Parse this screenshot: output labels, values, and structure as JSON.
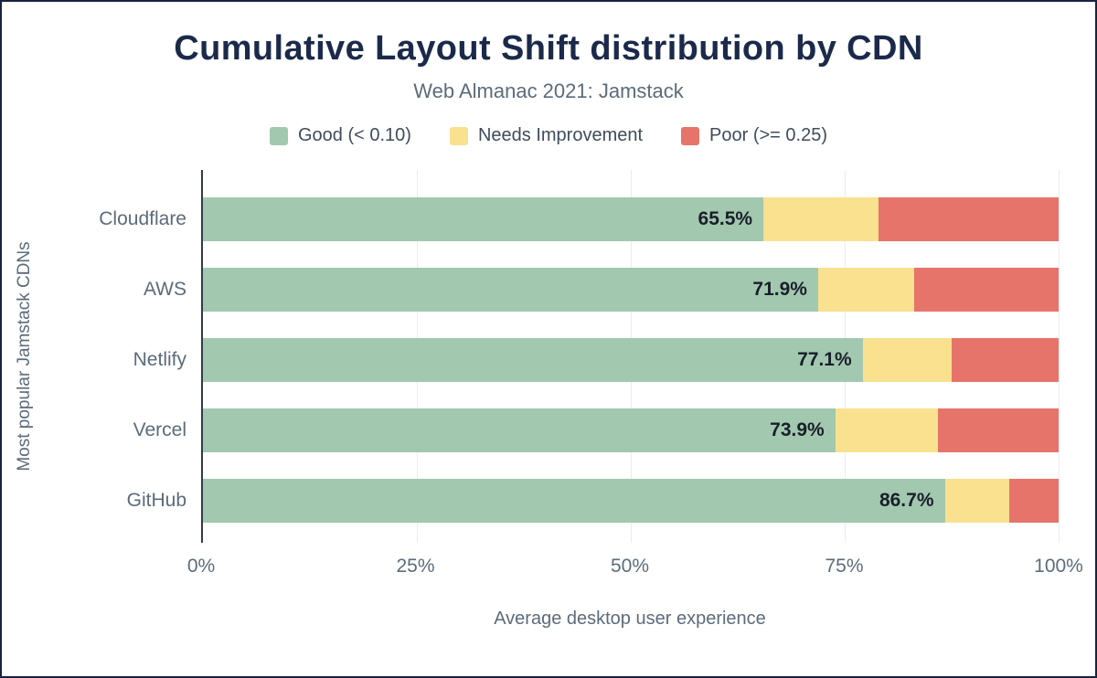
{
  "title": "Cumulative Layout Shift distribution by CDN",
  "subtitle": "Web Almanac 2021: Jamstack",
  "legend": [
    {
      "label": "Good (< 0.10)",
      "color": "#a3c8b0"
    },
    {
      "label": "Needs Improvement",
      "color": "#f9e18f"
    },
    {
      "label": "Poor (>= 0.25)",
      "color": "#e6746a"
    }
  ],
  "colors": {
    "good": "#a3c8b0",
    "needs_improvement": "#f9e18f",
    "poor": "#e6746a",
    "title": "#1b2a4a",
    "frame_border": "#16243d",
    "axis_text": "#5c6b7a",
    "gridline": "#e9edf0"
  },
  "chart_data": {
    "type": "bar",
    "orientation": "horizontal",
    "stacked": true,
    "title": "Cumulative Layout Shift distribution by CDN",
    "subtitle": "Web Almanac 2021: Jamstack",
    "categories": [
      "Cloudflare",
      "AWS",
      "Netlify",
      "Vercel",
      "GitHub"
    ],
    "series": [
      {
        "name": "Good (< 0.10)",
        "color": "#a3c8b0",
        "values": [
          65.5,
          71.9,
          77.1,
          73.9,
          86.7
        ]
      },
      {
        "name": "Needs Improvement",
        "color": "#f9e18f",
        "values": [
          13.4,
          11.2,
          10.4,
          12.0,
          7.5
        ]
      },
      {
        "name": "Poor (>= 0.25)",
        "color": "#e6746a",
        "values": [
          21.1,
          16.9,
          12.5,
          14.1,
          5.8
        ]
      }
    ],
    "bar_labels": [
      "65.5%",
      "71.9%",
      "77.1%",
      "73.9%",
      "86.7%"
    ],
    "xlabel": "Average desktop user experience",
    "ylabel": "Most popular Jamstack CDNs",
    "x_ticks": [
      {
        "value": 0,
        "label": "0%"
      },
      {
        "value": 25,
        "label": "25%"
      },
      {
        "value": 50,
        "label": "50%"
      },
      {
        "value": 75,
        "label": "75%"
      },
      {
        "value": 100,
        "label": "100%"
      }
    ],
    "xlim": [
      0,
      100
    ],
    "grid": true,
    "legend_position": "top"
  }
}
